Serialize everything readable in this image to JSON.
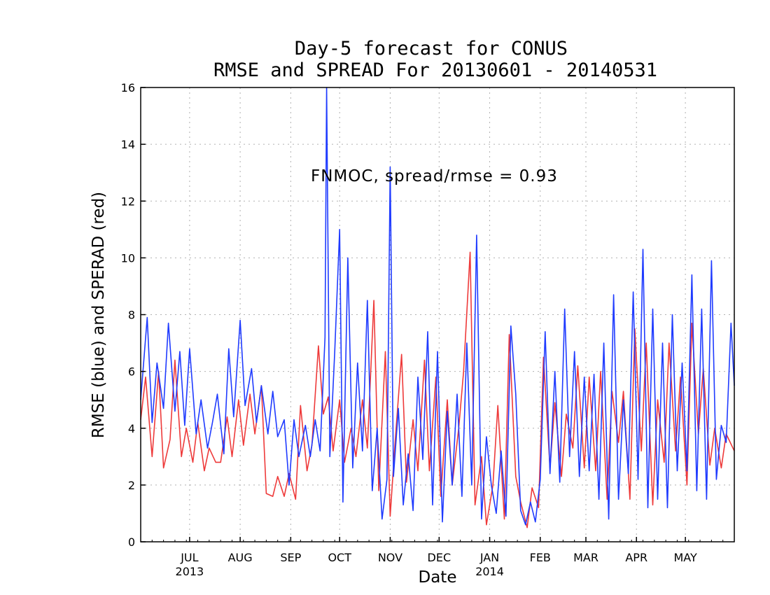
{
  "chart_data": {
    "type": "line",
    "title": "Day-5 forecast for CONUS",
    "subtitle": "RMSE and SPREAD For 20130601 - 20140531",
    "xlabel": "Date",
    "ylabel": "RMSE (blue) and SPERAD (red)",
    "annotation": "FNMOC, spread/rmse = 0.93",
    "ylim": [
      0,
      16
    ],
    "yticks": [
      0,
      2,
      4,
      6,
      8,
      10,
      12,
      14,
      16
    ],
    "xlim": [
      "2013-06-01",
      "2014-05-31"
    ],
    "xticks": [
      {
        "label": "JUL",
        "date": "2013-07-01",
        "year": "2013"
      },
      {
        "label": "AUG",
        "date": "2013-08-01"
      },
      {
        "label": "SEP",
        "date": "2013-09-01"
      },
      {
        "label": "OCT",
        "date": "2013-10-01"
      },
      {
        "label": "NOV",
        "date": "2013-11-01"
      },
      {
        "label": "DEC",
        "date": "2013-12-01"
      },
      {
        "label": "JAN",
        "date": "2014-01-01",
        "year": "2014"
      },
      {
        "label": "FEB",
        "date": "2014-02-01"
      },
      {
        "label": "MAR",
        "date": "2014-03-01"
      },
      {
        "label": "APR",
        "date": "2014-04-01"
      },
      {
        "label": "MAY",
        "date": "2014-05-01"
      }
    ],
    "grid": true,
    "series": [
      {
        "color": "#1f3bff",
        "x": [
          "2013-06-01",
          "2013-06-05",
          "2013-06-08",
          "2013-06-11",
          "2013-06-15",
          "2013-06-18",
          "2013-06-22",
          "2013-06-25",
          "2013-06-28",
          "2013-07-01",
          "2013-07-05",
          "2013-07-08",
          "2013-07-12",
          "2013-07-15",
          "2013-07-18",
          "2013-07-22",
          "2013-07-25",
          "2013-07-28",
          "2013-08-01",
          "2013-08-04",
          "2013-08-08",
          "2013-08-11",
          "2013-08-14",
          "2013-08-18",
          "2013-08-21",
          "2013-08-24",
          "2013-08-28",
          "2013-08-31",
          "2013-09-03",
          "2013-09-06",
          "2013-09-10",
          "2013-09-13",
          "2013-09-16",
          "2013-09-19",
          "2013-09-22",
          "2013-09-23",
          "2013-09-25",
          "2013-09-28",
          "2013-10-01",
          "2013-10-03",
          "2013-10-06",
          "2013-10-09",
          "2013-10-12",
          "2013-10-15",
          "2013-10-18",
          "2013-10-21",
          "2013-10-24",
          "2013-10-27",
          "2013-10-30",
          "2013-11-01",
          "2013-11-03",
          "2013-11-06",
          "2013-11-09",
          "2013-11-12",
          "2013-11-15",
          "2013-11-18",
          "2013-11-21",
          "2013-11-24",
          "2013-11-27",
          "2013-11-30",
          "2013-12-03",
          "2013-12-06",
          "2013-12-09",
          "2013-12-12",
          "2013-12-15",
          "2013-12-18",
          "2013-12-21",
          "2013-12-24",
          "2013-12-27",
          "2013-12-30",
          "2014-01-02",
          "2014-01-05",
          "2014-01-08",
          "2014-01-11",
          "2014-01-14",
          "2014-01-17",
          "2014-01-20",
          "2014-01-23",
          "2014-01-26",
          "2014-01-29",
          "2014-02-01",
          "2014-02-04",
          "2014-02-07",
          "2014-02-10",
          "2014-02-13",
          "2014-02-16",
          "2014-02-19",
          "2014-02-22",
          "2014-02-25",
          "2014-02-28",
          "2014-03-03",
          "2014-03-06",
          "2014-03-09",
          "2014-03-12",
          "2014-03-15",
          "2014-03-18",
          "2014-03-21",
          "2014-03-24",
          "2014-03-27",
          "2014-03-30",
          "2014-04-02",
          "2014-04-05",
          "2014-04-08",
          "2014-04-11",
          "2014-04-14",
          "2014-04-17",
          "2014-04-20",
          "2014-04-23",
          "2014-04-26",
          "2014-04-29",
          "2014-05-02",
          "2014-05-05",
          "2014-05-08",
          "2014-05-11",
          "2014-05-14",
          "2014-05-17",
          "2014-05-20",
          "2014-05-23",
          "2014-05-26",
          "2014-05-29",
          "2014-05-31"
        ],
        "values": [
          5.0,
          7.9,
          4.2,
          6.3,
          4.7,
          7.7,
          4.6,
          6.7,
          4.1,
          6.8,
          3.8,
          5.0,
          3.3,
          4.2,
          5.2,
          3.1,
          6.8,
          4.4,
          7.8,
          4.8,
          6.1,
          4.2,
          5.5,
          3.8,
          5.3,
          3.7,
          4.3,
          2.0,
          4.3,
          3.0,
          4.1,
          3.0,
          4.3,
          3.2,
          7.2,
          16.0,
          3.0,
          6.7,
          11.0,
          1.4,
          10.0,
          2.6,
          6.3,
          3.2,
          8.5,
          1.8,
          4.0,
          0.8,
          2.2,
          13.2,
          2.3,
          4.7,
          1.3,
          3.1,
          1.1,
          5.8,
          2.9,
          7.4,
          1.3,
          6.7,
          0.7,
          4.6,
          2.0,
          5.2,
          1.6,
          7.0,
          2.0,
          10.8,
          0.8,
          3.7,
          2.0,
          1.0,
          3.2,
          0.9,
          7.6,
          5.2,
          1.1,
          0.6,
          1.4,
          0.7,
          2.2,
          7.4,
          2.4,
          6.0,
          2.1,
          8.2,
          3.0,
          6.7,
          2.3,
          5.8,
          2.5,
          5.9,
          1.5,
          7.0,
          0.8,
          8.7,
          1.5,
          5.0,
          2.4,
          8.8,
          2.2,
          10.3,
          1.2,
          8.2,
          1.5,
          7.0,
          1.2,
          8.0,
          2.5,
          6.3,
          2.5,
          9.4,
          1.8,
          8.2,
          1.5,
          9.9,
          2.2,
          4.1,
          3.5,
          7.7,
          5.5
        ]
      },
      {
        "color": "#ee3a3a",
        "x": [
          "2013-06-01",
          "2013-06-04",
          "2013-06-08",
          "2013-06-12",
          "2013-06-15",
          "2013-06-19",
          "2013-06-22",
          "2013-06-26",
          "2013-06-29",
          "2013-07-03",
          "2013-07-06",
          "2013-07-10",
          "2013-07-13",
          "2013-07-17",
          "2013-07-20",
          "2013-07-24",
          "2013-07-27",
          "2013-07-31",
          "2013-08-03",
          "2013-08-07",
          "2013-08-10",
          "2013-08-14",
          "2013-08-17",
          "2013-08-21",
          "2013-08-24",
          "2013-08-28",
          "2013-08-31",
          "2013-09-04",
          "2013-09-07",
          "2013-09-11",
          "2013-09-14",
          "2013-09-18",
          "2013-09-21",
          "2013-09-24",
          "2013-09-27",
          "2013-10-01",
          "2013-10-04",
          "2013-10-08",
          "2013-10-11",
          "2013-10-15",
          "2013-10-18",
          "2013-10-22",
          "2013-10-25",
          "2013-10-29",
          "2013-11-01",
          "2013-11-04",
          "2013-11-08",
          "2013-11-11",
          "2013-11-15",
          "2013-11-18",
          "2013-11-22",
          "2013-11-25",
          "2013-11-29",
          "2013-12-02",
          "2013-12-06",
          "2013-12-09",
          "2013-12-13",
          "2013-12-16",
          "2013-12-20",
          "2013-12-23",
          "2013-12-27",
          "2013-12-30",
          "2014-01-03",
          "2014-01-06",
          "2014-01-10",
          "2014-01-13",
          "2014-01-17",
          "2014-01-20",
          "2014-01-24",
          "2014-01-27",
          "2014-01-31",
          "2014-02-03",
          "2014-02-07",
          "2014-02-10",
          "2014-02-14",
          "2014-02-17",
          "2014-02-21",
          "2014-02-24",
          "2014-02-28",
          "2014-03-03",
          "2014-03-07",
          "2014-03-10",
          "2014-03-14",
          "2014-03-17",
          "2014-03-21",
          "2014-03-24",
          "2014-03-28",
          "2014-03-31",
          "2014-04-04",
          "2014-04-07",
          "2014-04-11",
          "2014-04-14",
          "2014-04-18",
          "2014-04-21",
          "2014-04-25",
          "2014-04-28",
          "2014-05-02",
          "2014-05-05",
          "2014-05-09",
          "2014-05-12",
          "2014-05-16",
          "2014-05-19",
          "2014-05-23",
          "2014-05-26",
          "2014-05-31"
        ],
        "values": [
          4.3,
          5.8,
          3.0,
          6.0,
          2.6,
          3.6,
          6.4,
          3.0,
          4.0,
          2.8,
          4.2,
          2.5,
          3.3,
          2.8,
          2.8,
          4.4,
          3.0,
          5.0,
          3.4,
          5.2,
          3.8,
          5.5,
          1.7,
          1.6,
          2.3,
          1.6,
          2.4,
          1.5,
          4.8,
          2.5,
          3.4,
          6.9,
          4.5,
          5.1,
          3.2,
          5.0,
          2.8,
          4.0,
          3.0,
          5.0,
          3.3,
          8.5,
          1.8,
          6.7,
          0.9,
          3.5,
          6.6,
          2.1,
          4.3,
          2.5,
          6.4,
          2.5,
          5.8,
          1.6,
          5.0,
          2.0,
          4.0,
          6.0,
          10.2,
          1.3,
          3.0,
          0.6,
          2.0,
          4.8,
          0.8,
          7.3,
          2.3,
          1.4,
          0.5,
          1.9,
          1.2,
          6.5,
          2.6,
          4.9,
          2.3,
          4.5,
          3.3,
          6.2,
          2.6,
          5.8,
          2.5,
          6.0,
          1.5,
          5.3,
          3.5,
          5.3,
          1.5,
          7.5,
          3.2,
          7.0,
          1.3,
          5.0,
          2.8,
          7.0,
          3.2,
          5.8,
          2.0,
          7.7,
          3.8,
          6.1,
          2.7,
          4.0,
          2.6,
          3.8,
          3.2
        ]
      }
    ]
  }
}
